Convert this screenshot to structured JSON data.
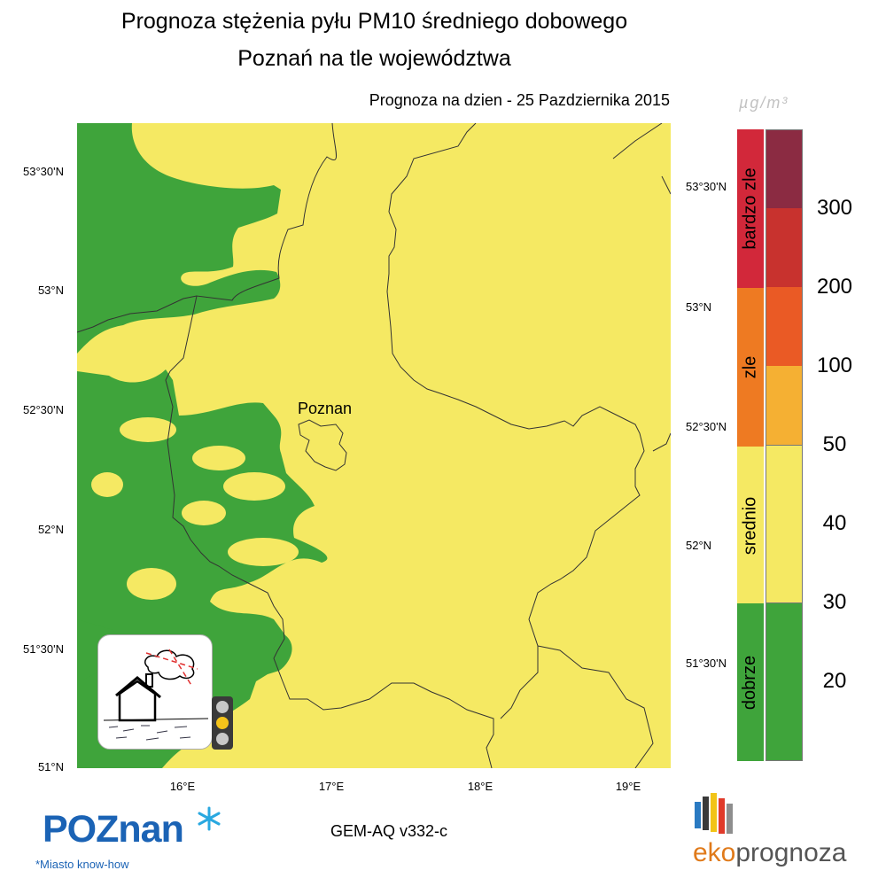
{
  "header": {
    "title_line1": "Prognoza stężenia pyłu PM10 średniego dobowego",
    "title_line2": "Poznań na tle województwa",
    "forecast_date": "Prognoza na dzien -  25 Pazdziernika 2015"
  },
  "map": {
    "city_label": "Poznan",
    "lat_labels": [
      "53°30'N",
      "53°N",
      "52°30'N",
      "52°N",
      "51°30'N",
      "51°N"
    ],
    "lon_labels": [
      "16°E",
      "17°E",
      "18°E",
      "19°E"
    ],
    "colors": {
      "good": "#3fa43b",
      "moderate": "#f5e963",
      "border": "#333333"
    },
    "traffic_light": {
      "active": "yellow"
    },
    "icon": "house-smoke-icon"
  },
  "legend": {
    "unit": "µg/m³",
    "levels": [
      {
        "name": "bardzo zle",
        "color": "#d2283a"
      },
      {
        "name": "zle",
        "color": "#ee7a22"
      },
      {
        "name": "srednio",
        "color": "#f5e963"
      },
      {
        "name": "dobrze",
        "color": "#3fa43b"
      }
    ],
    "scale_colors": [
      "#8b2b42",
      "#c8322e",
      "#ea5a25",
      "#f5b033",
      "#f5e963",
      "#f5e963",
      "#3fa43b",
      "#3fa43b"
    ],
    "tick_labels": [
      "300",
      "200",
      "100",
      "50",
      "40",
      "30",
      "20"
    ]
  },
  "footer": {
    "model": "GEM-AQ v332-c",
    "poznan_logo": "POZnan",
    "poznan_tagline": "*Miasto know-how",
    "eko_logo_prefix": "eko",
    "eko_logo_suffix": "prognoza"
  }
}
